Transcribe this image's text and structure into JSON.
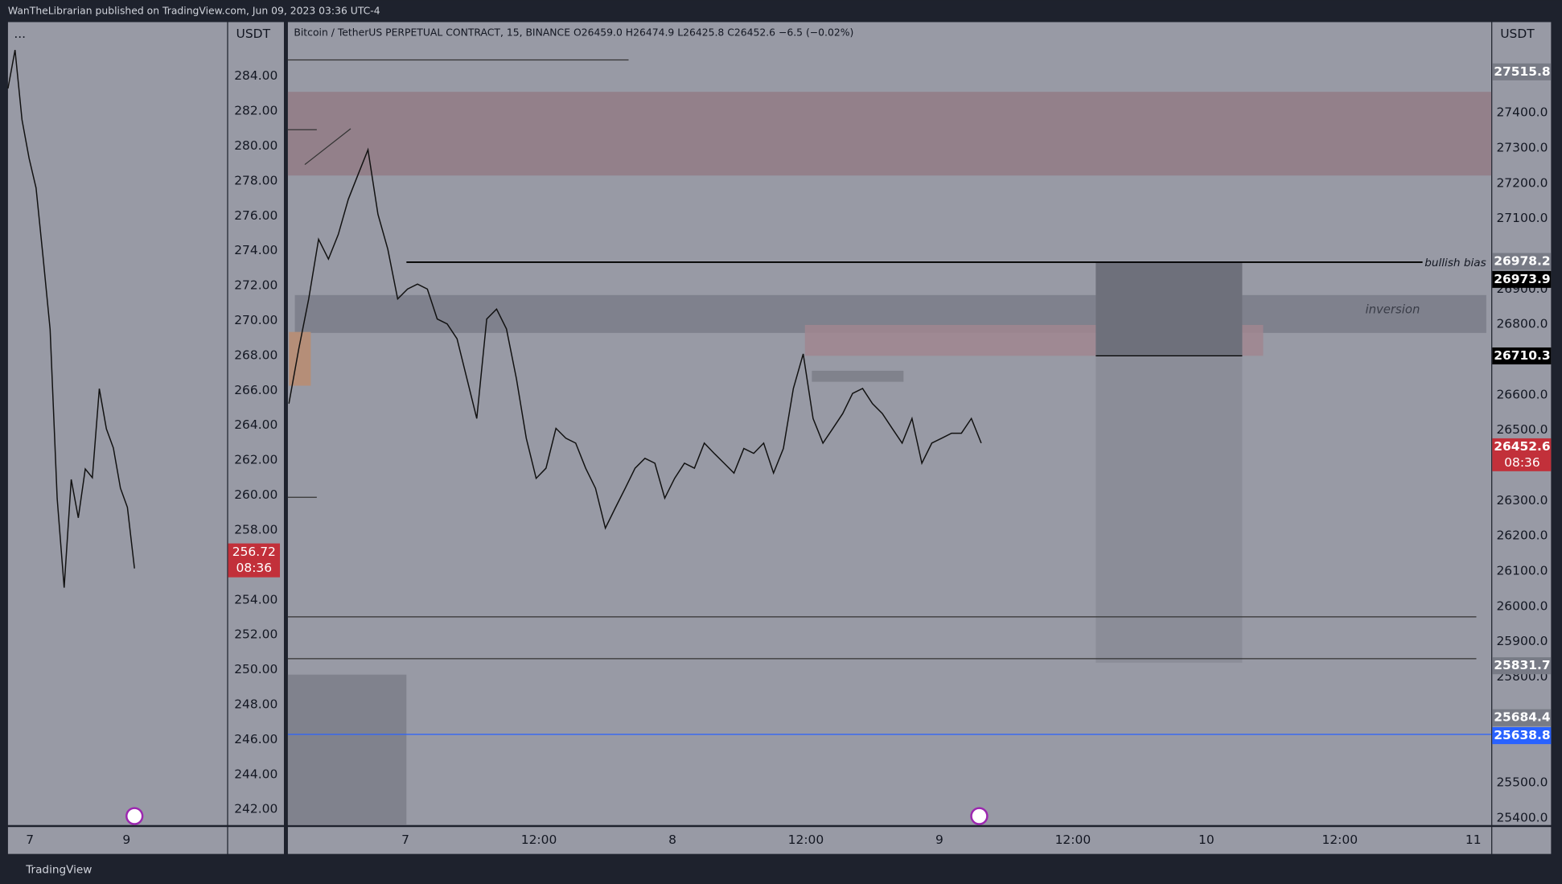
{
  "header": {
    "publisher": "WanTheLibrarian published on TradingView.com, Jun 09, 2023 03:36 UTC-4"
  },
  "footer": {
    "brand": "TradingView"
  },
  "left_pane": {
    "menu": "...",
    "axis_unit": "USDT",
    "ylim": [
      241.1,
      287.1
    ],
    "yticks": [
      {
        "value": 284,
        "label": "284.00"
      },
      {
        "value": 282,
        "label": "282.00"
      },
      {
        "value": 280,
        "label": "280.00"
      },
      {
        "value": 278,
        "label": "278.00"
      },
      {
        "value": 276,
        "label": "276.00"
      },
      {
        "value": 274,
        "label": "274.00"
      },
      {
        "value": 272,
        "label": "272.00"
      },
      {
        "value": 270,
        "label": "270.00"
      },
      {
        "value": 268,
        "label": "268.00"
      },
      {
        "value": 266,
        "label": "266.00"
      },
      {
        "value": 264,
        "label": "264.00"
      },
      {
        "value": 262,
        "label": "262.00"
      },
      {
        "value": 260,
        "label": "260.00"
      },
      {
        "value": 258,
        "label": "258.00"
      },
      {
        "value": 254,
        "label": "254.00"
      },
      {
        "value": 252,
        "label": "252.00"
      },
      {
        "value": 250,
        "label": "250.00"
      },
      {
        "value": 248,
        "label": "248.00"
      },
      {
        "value": 246,
        "label": "246.00"
      },
      {
        "value": 244,
        "label": "244.00"
      },
      {
        "value": 242,
        "label": "242.00"
      }
    ],
    "prices": [
      283.3,
      285.5,
      281.5,
      279.3,
      277.6,
      273.6,
      269.5,
      259.8,
      254.7,
      260.9,
      258.7,
      261.5,
      261,
      266.1,
      263.8,
      262.7,
      260.4,
      259.3,
      255.8
    ],
    "price_tag": {
      "value": 256.72,
      "countdown": "08:36",
      "color": "#c2303a"
    },
    "time_labels": [
      "7",
      "9"
    ]
  },
  "main_pane": {
    "symbol_info": "Bitcoin / TetherUS PERPETUAL CONTRACT, 15, BINANCE  O26459.0  H26474.9  L26425.8  C26452.6  −6.5 (−0.02%)",
    "axis_unit": "USDT",
    "ylim": [
      25380,
      27657
    ],
    "yticks": [
      {
        "value": 27400,
        "label": "27400.0"
      },
      {
        "value": 27300,
        "label": "27300.0"
      },
      {
        "value": 27200,
        "label": "27200.0"
      },
      {
        "value": 27100,
        "label": "27100.0"
      },
      {
        "value": 26900,
        "label": "26900.0"
      },
      {
        "value": 26800,
        "label": "26800.0"
      },
      {
        "value": 26600,
        "label": "26600.0"
      },
      {
        "value": 26500,
        "label": "26500.0"
      },
      {
        "value": 26300,
        "label": "26300.0"
      },
      {
        "value": 26200,
        "label": "26200.0"
      },
      {
        "value": 26100,
        "label": "26100.0"
      },
      {
        "value": 26000,
        "label": "26000.0"
      },
      {
        "value": 25900,
        "label": "25900.0"
      },
      {
        "value": 25800,
        "label": "25800.0"
      },
      {
        "value": 25500,
        "label": "25500.0"
      },
      {
        "value": 25400,
        "label": "25400.0"
      }
    ],
    "prices": [
      26575,
      26730,
      26872,
      27041,
      26985,
      27055,
      27154,
      27225,
      27295,
      27112,
      27013,
      26872,
      26900,
      26914,
      26900,
      26815,
      26801,
      26759,
      26646,
      26533,
      26815,
      26843,
      26787,
      26646,
      26477,
      26363,
      26392,
      26505,
      26477,
      26463,
      26392,
      26335,
      26222,
      26279,
      26335,
      26392,
      26420,
      26406,
      26307,
      26363,
      26406,
      26392,
      26463,
      26434,
      26406,
      26378,
      26448,
      26434,
      26463,
      26378,
      26448,
      26618,
      26716,
      26533,
      26463,
      26505,
      26547,
      26604,
      26618,
      26575,
      26547,
      26505,
      26463,
      26533,
      26406,
      26463,
      26477,
      26491,
      26491,
      26533,
      26463
    ],
    "price_tags": [
      {
        "value": 27515.8,
        "color": "#787b86"
      },
      {
        "value": 26978.2,
        "color": "#787b86"
      },
      {
        "value": 26973.9,
        "color": "#000000"
      },
      {
        "value": 26710.3,
        "color": "#000000"
      },
      {
        "value": 26452.6,
        "color": "#c2303a"
      },
      {
        "value": 25831.7,
        "color": "#787b86"
      },
      {
        "value": 25684.4,
        "color": "#787b86"
      },
      {
        "value": 25638.8,
        "color": "#2962ff"
      }
    ],
    "countdown": "08:36",
    "time_labels": [
      "7",
      "12:00",
      "8",
      "12:00",
      "9",
      "12:00",
      "10",
      "12:00",
      "11"
    ],
    "annotations": [
      "bullish bias",
      "inversion"
    ]
  }
}
